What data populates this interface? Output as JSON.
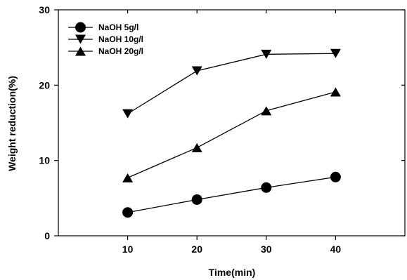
{
  "chart_data": {
    "type": "line",
    "title": "",
    "xlabel": "Time(min)",
    "ylabel": "Weight  reduction(%)",
    "xlim": [
      0,
      50
    ],
    "ylim": [
      0,
      30
    ],
    "x_ticks": [
      10,
      20,
      30,
      40
    ],
    "y_ticks": [
      0,
      10,
      20,
      30
    ],
    "grid": false,
    "legend_position": "top-left",
    "series": [
      {
        "name": "NaOH  5g/l",
        "marker": "circle",
        "color": "#000000",
        "x": [
          10,
          20,
          30,
          40
        ],
        "y": [
          3.1,
          4.8,
          6.4,
          7.8
        ]
      },
      {
        "name": "NaOH  10g/l",
        "marker": "triangle-down",
        "color": "#000000",
        "x": [
          10,
          20,
          30,
          40
        ],
        "y": [
          16.2,
          21.9,
          24.1,
          24.2
        ]
      },
      {
        "name": "NaOH  20g/l",
        "marker": "triangle-up",
        "color": "#000000",
        "x": [
          10,
          20,
          30,
          40
        ],
        "y": [
          7.7,
          11.7,
          16.6,
          19.1
        ]
      }
    ]
  }
}
